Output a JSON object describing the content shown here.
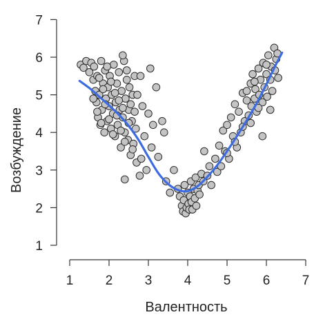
{
  "chart_data": {
    "type": "scatter",
    "title": "",
    "xlabel": "Валентность",
    "ylabel": "Возбуждение",
    "xlim": [
      1,
      7
    ],
    "ylim": [
      1,
      7
    ],
    "xticks": [
      1,
      2,
      3,
      4,
      5,
      6,
      7
    ],
    "yticks": [
      1,
      2,
      3,
      4,
      5,
      6,
      7
    ],
    "grid": false,
    "colors": {
      "point_fill": "#c4c4c4",
      "point_stroke": "#2a2a2a",
      "trend_line": "#3d6ce0",
      "axis": "#333333"
    },
    "series": [
      {
        "type": "scatter",
        "points": [
          [
            1.28,
            5.8
          ],
          [
            1.35,
            5.72
          ],
          [
            1.42,
            5.9
          ],
          [
            1.5,
            5.6
          ],
          [
            1.55,
            5.85
          ],
          [
            1.6,
            5.4
          ],
          [
            1.62,
            5.75
          ],
          [
            1.65,
            5.1
          ],
          [
            1.68,
            4.8
          ],
          [
            1.7,
            5.5
          ],
          [
            1.72,
            4.4
          ],
          [
            1.75,
            5.0
          ],
          [
            1.78,
            4.2
          ],
          [
            1.8,
            5.9
          ],
          [
            1.82,
            4.6
          ],
          [
            1.85,
            5.3
          ],
          [
            1.88,
            4.0
          ],
          [
            1.9,
            5.65
          ],
          [
            1.92,
            4.9
          ],
          [
            1.95,
            4.3
          ],
          [
            1.97,
            5.2
          ],
          [
            2.0,
            4.7
          ],
          [
            2.02,
            5.5
          ],
          [
            2.05,
            4.1
          ],
          [
            2.07,
            5.0
          ],
          [
            2.1,
            4.5
          ],
          [
            2.12,
            5.8
          ],
          [
            2.15,
            3.9
          ],
          [
            2.17,
            4.8
          ],
          [
            2.2,
            5.3
          ],
          [
            2.22,
            4.2
          ],
          [
            2.25,
            5.6
          ],
          [
            2.27,
            4.6
          ],
          [
            2.3,
            3.6
          ],
          [
            2.32,
            5.1
          ],
          [
            2.35,
            4.4
          ],
          [
            2.38,
            5.9
          ],
          [
            2.4,
            4.0
          ],
          [
            2.42,
            4.9
          ],
          [
            2.45,
            5.4
          ],
          [
            2.48,
            3.8
          ],
          [
            2.5,
            4.6
          ],
          [
            2.52,
            5.2
          ],
          [
            2.55,
            3.4
          ],
          [
            2.58,
            4.3
          ],
          [
            2.6,
            5.0
          ],
          [
            2.62,
            3.7
          ],
          [
            2.65,
            5.5
          ],
          [
            2.68,
            4.1
          ],
          [
            2.7,
            3.2
          ],
          [
            1.6,
            4.9
          ],
          [
            1.7,
            4.55
          ],
          [
            1.8,
            4.25
          ],
          [
            1.9,
            4.75
          ],
          [
            2.0,
            4.35
          ],
          [
            2.1,
            3.95
          ],
          [
            2.2,
            4.45
          ],
          [
            2.3,
            4.05
          ],
          [
            2.4,
            3.75
          ],
          [
            2.5,
            4.25
          ],
          [
            1.75,
            5.45
          ],
          [
            1.85,
            5.15
          ],
          [
            1.95,
            5.75
          ],
          [
            2.05,
            5.35
          ],
          [
            2.15,
            5.05
          ],
          [
            2.25,
            4.85
          ],
          [
            2.35,
            4.65
          ],
          [
            2.45,
            5.65
          ],
          [
            2.55,
            4.75
          ],
          [
            2.65,
            4.55
          ],
          [
            2.35,
            6.05
          ],
          [
            2.4,
            2.75
          ],
          [
            2.6,
            3.55
          ],
          [
            2.72,
            5.0
          ],
          [
            2.78,
            2.85
          ],
          [
            2.8,
            5.5
          ],
          [
            2.82,
            3.3
          ],
          [
            2.85,
            4.7
          ],
          [
            2.9,
            3.9
          ],
          [
            2.95,
            3.0
          ],
          [
            3.0,
            4.5
          ],
          [
            3.05,
            5.7
          ],
          [
            3.08,
            3.6
          ],
          [
            3.12,
            4.2
          ],
          [
            3.2,
            5.2
          ],
          [
            3.25,
            3.35
          ],
          [
            3.35,
            4.3
          ],
          [
            3.4,
            4.0
          ],
          [
            3.45,
            2.7
          ],
          [
            3.55,
            2.4
          ],
          [
            3.65,
            3.0
          ],
          [
            3.75,
            2.5
          ],
          [
            3.8,
            2.3
          ],
          [
            3.85,
            2.05
          ],
          [
            3.88,
            1.9
          ],
          [
            3.9,
            2.2
          ],
          [
            3.92,
            2.6
          ],
          [
            3.95,
            1.85
          ],
          [
            3.97,
            2.0
          ],
          [
            4.0,
            2.4
          ],
          [
            4.02,
            2.1
          ],
          [
            4.04,
            1.95
          ],
          [
            4.06,
            2.3
          ],
          [
            4.08,
            2.7
          ],
          [
            4.1,
            2.15
          ],
          [
            4.12,
            1.95
          ],
          [
            4.15,
            2.5
          ],
          [
            4.18,
            2.25
          ],
          [
            4.2,
            2.8
          ],
          [
            4.22,
            2.05
          ],
          [
            4.25,
            2.45
          ],
          [
            4.28,
            2.6
          ],
          [
            4.3,
            2.35
          ],
          [
            4.35,
            2.9
          ],
          [
            4.4,
            2.7
          ],
          [
            4.42,
            3.5
          ],
          [
            4.5,
            2.85
          ],
          [
            4.55,
            3.1
          ],
          [
            4.6,
            2.6
          ],
          [
            4.7,
            3.3
          ],
          [
            4.75,
            2.95
          ],
          [
            4.8,
            3.65
          ],
          [
            4.85,
            3.1
          ],
          [
            4.9,
            4.05
          ],
          [
            4.95,
            3.5
          ],
          [
            5.0,
            4.2
          ],
          [
            5.05,
            3.3
          ],
          [
            5.1,
            4.4
          ],
          [
            5.15,
            3.9
          ],
          [
            5.2,
            4.75
          ],
          [
            5.25,
            3.6
          ],
          [
            5.3,
            4.55
          ],
          [
            5.35,
            4.0
          ],
          [
            5.4,
            5.05
          ],
          [
            5.45,
            4.3
          ],
          [
            5.5,
            4.85
          ],
          [
            5.55,
            4.45
          ],
          [
            5.6,
            5.3
          ],
          [
            5.62,
            4.7
          ],
          [
            5.65,
            5.55
          ],
          [
            5.7,
            4.9
          ],
          [
            5.72,
            5.15
          ],
          [
            5.75,
            4.55
          ],
          [
            5.8,
            5.7
          ],
          [
            5.82,
            5.0
          ],
          [
            5.85,
            5.4
          ],
          [
            5.9,
            4.8
          ],
          [
            5.92,
            5.85
          ],
          [
            5.95,
            5.2
          ],
          [
            6.0,
            5.55
          ],
          [
            6.02,
            4.95
          ],
          [
            6.05,
            6.05
          ],
          [
            6.1,
            5.4
          ],
          [
            6.12,
            5.75
          ],
          [
            6.15,
            5.1
          ],
          [
            6.2,
            6.25
          ],
          [
            6.22,
            5.65
          ],
          [
            6.25,
            5.95
          ],
          [
            6.28,
            6.1
          ],
          [
            6.3,
            5.45
          ],
          [
            5.0,
            3.45
          ],
          [
            5.2,
            3.75
          ],
          [
            5.4,
            4.15
          ],
          [
            5.6,
            4.25
          ],
          [
            5.8,
            4.65
          ],
          [
            5.9,
            3.9
          ],
          [
            6.1,
            4.6
          ],
          [
            5.5,
            5.1
          ],
          [
            5.7,
            5.35
          ],
          [
            6.0,
            5.8
          ]
        ]
      },
      {
        "type": "line",
        "x": [
          1.25,
          1.5,
          1.75,
          2.0,
          2.25,
          2.5,
          2.75,
          3.0,
          3.25,
          3.5,
          3.75,
          4.0,
          4.25,
          4.5,
          4.75,
          5.0,
          5.25,
          5.5,
          5.75,
          6.0,
          6.25,
          6.4
        ],
        "y": [
          5.37,
          5.18,
          4.95,
          4.72,
          4.47,
          4.17,
          3.8,
          3.35,
          2.92,
          2.63,
          2.47,
          2.44,
          2.57,
          2.82,
          3.13,
          3.5,
          3.9,
          4.32,
          4.77,
          5.28,
          5.82,
          6.12
        ]
      }
    ]
  }
}
